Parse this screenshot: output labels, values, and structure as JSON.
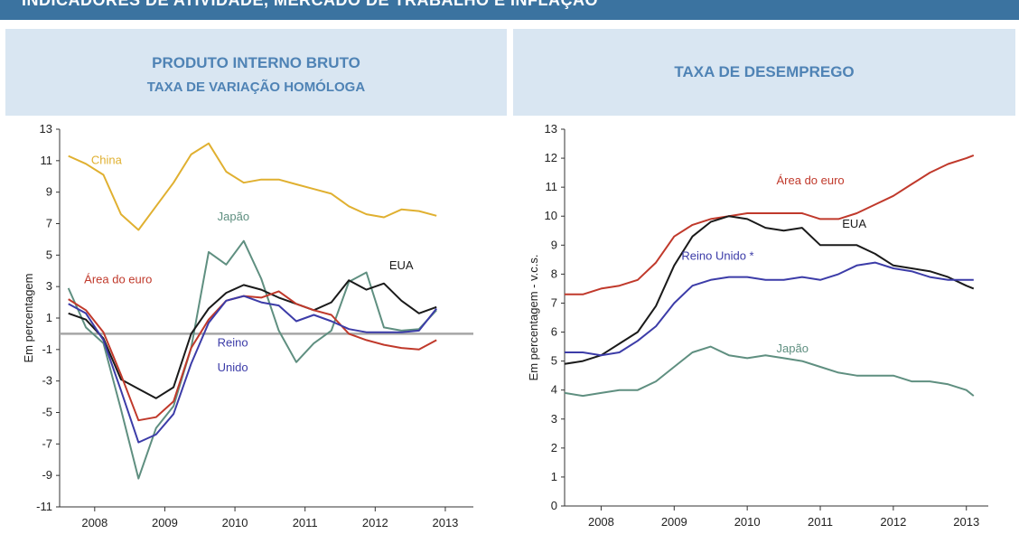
{
  "header": {
    "title": "INDICADORES DE ATIVIDADE, MERCADO DE TRABALHO E INFLAÇÃO"
  },
  "colors": {
    "china": "#e0b030",
    "japao": "#5f8f80",
    "eua": "#1a1a1a",
    "area_euro": "#c0392b",
    "reino_unido": "#3c3ca8",
    "zero_line": "#a6a6a6",
    "header_bar": "#3b73a0",
    "panel_bg": "#d9e6f2",
    "panel_text": "#4f83b5"
  },
  "chart_data": [
    {
      "type": "line",
      "title": "PRODUTO INTERNO BRUTO",
      "subtitle": "TAXA DE VARIAÇÃO HOMÓLOGA",
      "ylabel": "Em percentagem",
      "xlabel": "",
      "ylim": [
        -11,
        13
      ],
      "yticks": [
        "13",
        "11",
        "9",
        "7",
        "5",
        "3",
        "1",
        "-1",
        "-3",
        "-5",
        "-7",
        "-9",
        "-11"
      ],
      "xlim": [
        2007.5,
        2013.4
      ],
      "xticks": [
        "2008",
        "2009",
        "2010",
        "2011",
        "2012",
        "2013"
      ],
      "reference_line": 0,
      "series": [
        {
          "name": "China",
          "color_key": "china",
          "x": [
            2007.625,
            2007.875,
            2008.125,
            2008.375,
            2008.625,
            2008.875,
            2009.125,
            2009.375,
            2009.625,
            2009.875,
            2010.125,
            2010.375,
            2010.625,
            2010.875,
            2011.125,
            2011.375,
            2011.625,
            2011.875,
            2012.125,
            2012.375,
            2012.625,
            2012.875
          ],
          "y": [
            11.3,
            10.8,
            10.1,
            7.6,
            6.6,
            8.1,
            9.6,
            11.4,
            12.1,
            10.3,
            9.6,
            9.8,
            9.8,
            9.5,
            9.2,
            8.9,
            8.1,
            7.6,
            7.4,
            7.9,
            7.8,
            7.5
          ]
        },
        {
          "name": "Japão",
          "color_key": "japao",
          "x": [
            2007.625,
            2007.875,
            2008.125,
            2008.375,
            2008.625,
            2008.875,
            2009.125,
            2009.375,
            2009.625,
            2009.875,
            2010.125,
            2010.375,
            2010.625,
            2010.875,
            2011.125,
            2011.375,
            2011.625,
            2011.875,
            2012.125,
            2012.375,
            2012.625,
            2012.875
          ],
          "y": [
            2.9,
            0.4,
            -0.6,
            -4.8,
            -9.2,
            -6.0,
            -4.6,
            -0.9,
            5.2,
            4.4,
            5.9,
            3.5,
            0.2,
            -1.8,
            -0.6,
            0.2,
            3.3,
            3.9,
            0.4,
            0.2,
            0.3,
            1.5
          ]
        },
        {
          "name": "EUA",
          "color_key": "eua",
          "x": [
            2007.625,
            2007.875,
            2008.125,
            2008.375,
            2008.625,
            2008.875,
            2009.125,
            2009.375,
            2009.625,
            2009.875,
            2010.125,
            2010.375,
            2010.625,
            2010.875,
            2011.125,
            2011.375,
            2011.625,
            2011.875,
            2012.125,
            2012.375,
            2012.625,
            2012.875
          ],
          "y": [
            1.3,
            0.9,
            -0.3,
            -2.9,
            -3.5,
            -4.1,
            -3.4,
            0.0,
            1.6,
            2.6,
            3.1,
            2.8,
            2.3,
            1.9,
            1.5,
            2.0,
            3.4,
            2.8,
            3.2,
            2.1,
            1.3,
            1.7
          ]
        },
        {
          "name": "Área do euro",
          "color_key": "area_euro",
          "x": [
            2007.625,
            2007.875,
            2008.125,
            2008.375,
            2008.625,
            2008.875,
            2009.125,
            2009.375,
            2009.625,
            2009.875,
            2010.125,
            2010.375,
            2010.625,
            2010.875,
            2011.125,
            2011.375,
            2011.625,
            2011.875,
            2012.125,
            2012.375,
            2012.625,
            2012.875
          ],
          "y": [
            2.2,
            1.5,
            0.1,
            -2.6,
            -5.5,
            -5.3,
            -4.3,
            -0.9,
            0.9,
            2.1,
            2.4,
            2.3,
            2.7,
            1.9,
            1.5,
            1.2,
            0.0,
            -0.4,
            -0.7,
            -0.9,
            -1.0,
            -0.4
          ]
        },
        {
          "name": "Reino Unido",
          "color_key": "reino_unido",
          "x": [
            2007.625,
            2007.875,
            2008.125,
            2008.375,
            2008.625,
            2008.875,
            2009.125,
            2009.375,
            2009.625,
            2009.875,
            2010.125,
            2010.375,
            2010.625,
            2010.875,
            2011.125,
            2011.375,
            2011.625,
            2011.875,
            2012.125,
            2012.375,
            2012.625,
            2012.875
          ],
          "y": [
            1.9,
            1.3,
            -0.4,
            -3.6,
            -6.9,
            -6.4,
            -5.1,
            -1.9,
            0.7,
            2.1,
            2.4,
            2.0,
            1.8,
            0.8,
            1.2,
            0.8,
            0.3,
            0.1,
            0.1,
            0.1,
            0.2,
            1.6
          ]
        }
      ],
      "labels": [
        {
          "text": "China",
          "series": "china",
          "x": 2007.95,
          "y": 10.8
        },
        {
          "text": "Japão",
          "series": "japao",
          "x": 2009.75,
          "y": 7.2
        },
        {
          "text": "EUA",
          "series": "eua",
          "x": 2012.2,
          "y": 4.1
        },
        {
          "text": "Área do euro",
          "series": "area_euro",
          "x": 2007.85,
          "y": 3.2
        },
        {
          "text": "Reino",
          "series": "reino_unido",
          "x": 2009.75,
          "y": -0.8
        },
        {
          "text": "Unido",
          "series": "reino_unido",
          "x": 2009.75,
          "y": -2.4
        }
      ]
    },
    {
      "type": "line",
      "title": "TAXA DE DESEMPREGO",
      "ylabel": "Em percentagem - v.c.s.",
      "xlabel": "",
      "ylim": [
        0,
        13
      ],
      "yticks": [
        "13",
        "12",
        "11",
        "10",
        "9",
        "8",
        "7",
        "6",
        "5",
        "4",
        "3",
        "2",
        "1",
        "0"
      ],
      "xlim": [
        2007.5,
        2013.3
      ],
      "xticks": [
        "2008",
        "2009",
        "2010",
        "2011",
        "2012",
        "2013"
      ],
      "series": [
        {
          "name": "Área do euro",
          "color_key": "area_euro",
          "x": [
            2007.5,
            2007.75,
            2008.0,
            2008.25,
            2008.5,
            2008.75,
            2009.0,
            2009.25,
            2009.5,
            2009.75,
            2010.0,
            2010.25,
            2010.5,
            2010.75,
            2011.0,
            2011.25,
            2011.5,
            2011.75,
            2012.0,
            2012.25,
            2012.5,
            2012.75,
            2013.0,
            2013.1
          ],
          "y": [
            7.3,
            7.3,
            7.5,
            7.6,
            7.8,
            8.4,
            9.3,
            9.7,
            9.9,
            10.0,
            10.1,
            10.1,
            10.1,
            10.1,
            9.9,
            9.9,
            10.1,
            10.4,
            10.7,
            11.1,
            11.5,
            11.8,
            12.0,
            12.1
          ]
        },
        {
          "name": "EUA",
          "color_key": "eua",
          "x": [
            2007.5,
            2007.75,
            2008.0,
            2008.25,
            2008.5,
            2008.75,
            2009.0,
            2009.25,
            2009.5,
            2009.75,
            2010.0,
            2010.25,
            2010.5,
            2010.75,
            2011.0,
            2011.25,
            2011.5,
            2011.75,
            2012.0,
            2012.25,
            2012.5,
            2012.75,
            2013.0,
            2013.1
          ],
          "y": [
            4.9,
            5.0,
            5.2,
            5.6,
            6.0,
            6.9,
            8.3,
            9.3,
            9.8,
            10.0,
            9.9,
            9.6,
            9.5,
            9.6,
            9.0,
            9.0,
            9.0,
            8.7,
            8.3,
            8.2,
            8.1,
            7.9,
            7.6,
            7.5
          ]
        },
        {
          "name": "Reino Unido *",
          "color_key": "reino_unido",
          "x": [
            2007.5,
            2007.75,
            2008.0,
            2008.25,
            2008.5,
            2008.75,
            2009.0,
            2009.25,
            2009.5,
            2009.75,
            2010.0,
            2010.25,
            2010.5,
            2010.75,
            2011.0,
            2011.25,
            2011.5,
            2011.75,
            2012.0,
            2012.25,
            2012.5,
            2012.75,
            2013.0,
            2013.1
          ],
          "y": [
            5.3,
            5.3,
            5.2,
            5.3,
            5.7,
            6.2,
            7.0,
            7.6,
            7.8,
            7.9,
            7.9,
            7.8,
            7.8,
            7.9,
            7.8,
            8.0,
            8.3,
            8.4,
            8.2,
            8.1,
            7.9,
            7.8,
            7.8,
            7.8
          ]
        },
        {
          "name": "Japão",
          "color_key": "japao",
          "x": [
            2007.5,
            2007.75,
            2008.0,
            2008.25,
            2008.5,
            2008.75,
            2009.0,
            2009.25,
            2009.5,
            2009.75,
            2010.0,
            2010.25,
            2010.5,
            2010.75,
            2011.0,
            2011.25,
            2011.5,
            2011.75,
            2012.0,
            2012.25,
            2012.5,
            2012.75,
            2013.0,
            2013.1
          ],
          "y": [
            3.9,
            3.8,
            3.9,
            4.0,
            4.0,
            4.3,
            4.8,
            5.3,
            5.5,
            5.2,
            5.1,
            5.2,
            5.1,
            5.0,
            4.8,
            4.6,
            4.5,
            4.5,
            4.5,
            4.3,
            4.3,
            4.2,
            4.0,
            3.8
          ]
        }
      ],
      "labels": [
        {
          "text": "Área do euro",
          "series": "area_euro",
          "x": 2010.4,
          "y": 11.1
        },
        {
          "text": "EUA",
          "series": "eua",
          "x": 2011.3,
          "y": 9.6
        },
        {
          "text": "Reino Unido *",
          "series": "reino_unido",
          "x": 2009.1,
          "y": 8.5
        },
        {
          "text": "Japão",
          "series": "japao",
          "x": 2010.4,
          "y": 5.3
        }
      ]
    }
  ]
}
